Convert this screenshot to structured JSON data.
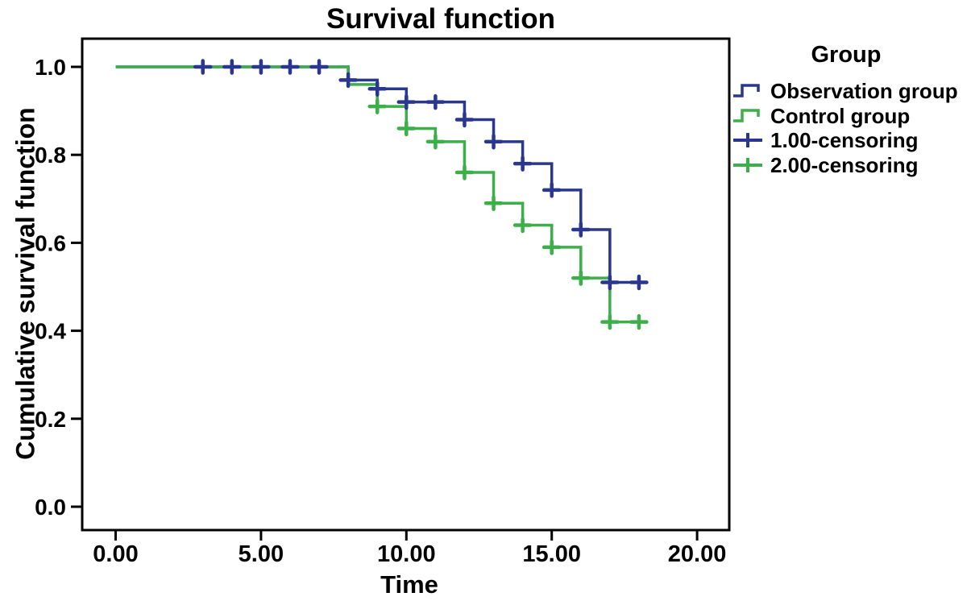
{
  "chart": {
    "title": "Survival function",
    "xlabel": "Time",
    "ylabel": "Cumulative survival function",
    "legend": {
      "title": "Group",
      "items": [
        {
          "label": "Observation group",
          "swatch": "step",
          "color": "#29378F"
        },
        {
          "label": "Control group",
          "swatch": "step",
          "color": "#3CAF4A"
        },
        {
          "label": "1.00-censoring",
          "swatch": "plus",
          "color": "#29378F"
        },
        {
          "label": "2.00-censoring",
          "swatch": "plus",
          "color": "#3CAF4A"
        }
      ]
    }
  },
  "chart_data": {
    "type": "line",
    "subtype": "kaplan-meier-step-survival",
    "title": "Survival function",
    "xlabel": "Time",
    "ylabel": "Cumulative survival function",
    "xlim": [
      0,
      20
    ],
    "ylim": [
      0.0,
      1.0
    ],
    "grid": false,
    "legend_position": "right",
    "x_ticks": [
      "0.00",
      "5.00",
      "10.00",
      "15.00",
      "20.00"
    ],
    "x_tick_values": [
      0,
      5,
      10,
      15,
      20
    ],
    "y_ticks": [
      "0.0",
      "0.2",
      "0.4",
      "0.6",
      "0.8",
      "1.0"
    ],
    "y_tick_values": [
      0.0,
      0.2,
      0.4,
      0.6,
      0.8,
      1.0
    ],
    "series": [
      {
        "name": "Observation group",
        "color": "#29378F",
        "end_time": 18.2,
        "steps": [
          [
            0,
            1.0
          ],
          [
            8,
            0.97
          ],
          [
            9,
            0.95
          ],
          [
            10,
            0.92
          ],
          [
            12,
            0.88
          ],
          [
            13,
            0.83
          ],
          [
            14,
            0.78
          ],
          [
            15,
            0.72
          ],
          [
            16,
            0.63
          ],
          [
            17,
            0.51
          ]
        ],
        "censored": [
          [
            3,
            1.0
          ],
          [
            4,
            1.0
          ],
          [
            5,
            1.0
          ],
          [
            6,
            1.0
          ],
          [
            7,
            1.0
          ],
          [
            8,
            0.97
          ],
          [
            9,
            0.95
          ],
          [
            10,
            0.92
          ],
          [
            11,
            0.92
          ],
          [
            12,
            0.88
          ],
          [
            13,
            0.83
          ],
          [
            14,
            0.78
          ],
          [
            15,
            0.72
          ],
          [
            16,
            0.63
          ],
          [
            17,
            0.51
          ],
          [
            18,
            0.51
          ]
        ]
      },
      {
        "name": "Control group",
        "color": "#3CAF4A",
        "end_time": 18.2,
        "steps": [
          [
            0,
            1.0
          ],
          [
            8,
            0.96
          ],
          [
            9,
            0.91
          ],
          [
            10,
            0.86
          ],
          [
            11,
            0.83
          ],
          [
            12,
            0.76
          ],
          [
            13,
            0.69
          ],
          [
            14,
            0.64
          ],
          [
            15,
            0.59
          ],
          [
            16,
            0.52
          ],
          [
            17,
            0.42
          ]
        ],
        "censored": [
          [
            9,
            0.91
          ],
          [
            10,
            0.86
          ],
          [
            11,
            0.83
          ],
          [
            12,
            0.76
          ],
          [
            13,
            0.69
          ],
          [
            14,
            0.64
          ],
          [
            15,
            0.59
          ],
          [
            16,
            0.52
          ],
          [
            17,
            0.42
          ],
          [
            18,
            0.42
          ]
        ]
      }
    ]
  }
}
